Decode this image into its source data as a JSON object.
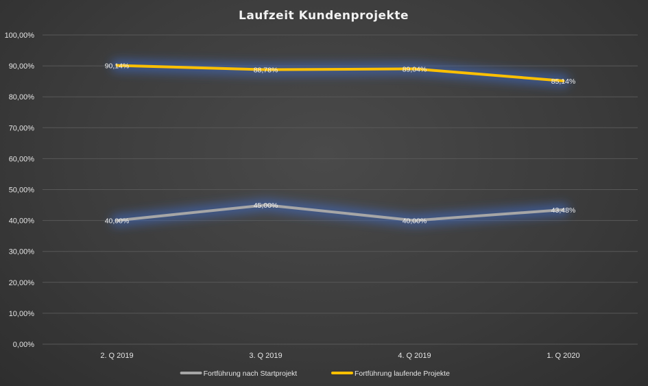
{
  "chart_data": {
    "type": "line",
    "title": "Laufzeit Kundenprojekte",
    "xlabel": "",
    "ylabel": "",
    "categories": [
      "2. Q 2019",
      "3. Q 2019",
      "4. Q 2019",
      "1. Q 2020"
    ],
    "ylim": [
      0,
      100
    ],
    "yticks": [
      "0,00%",
      "10,00%",
      "20,00%",
      "30,00%",
      "40,00%",
      "50,00%",
      "60,00%",
      "70,00%",
      "80,00%",
      "90,00%",
      "100,00%"
    ],
    "grid": true,
    "legend_position": "bottom",
    "series": [
      {
        "name": "Fortführung nach Startprojekt",
        "values": [
          40.0,
          45.0,
          40.0,
          43.48
        ],
        "labels": [
          "40,00%",
          "45,00%",
          "40,00%",
          "43,48%"
        ],
        "color": "#a6a6a6"
      },
      {
        "name": "Fortführung laufende Projekte",
        "values": [
          90.14,
          88.78,
          89.04,
          85.14
        ],
        "labels": [
          "90,14%",
          "88,78%",
          "89,04%",
          "85,14%"
        ],
        "color": "#ffc000"
      }
    ]
  }
}
